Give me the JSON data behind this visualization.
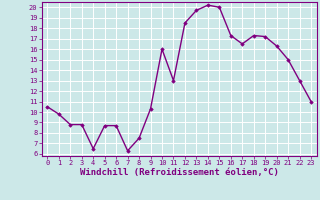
{
  "x": [
    0,
    1,
    2,
    3,
    4,
    5,
    6,
    7,
    8,
    9,
    10,
    11,
    12,
    13,
    14,
    15,
    16,
    17,
    18,
    19,
    20,
    21,
    22,
    23
  ],
  "y": [
    10.5,
    9.8,
    8.8,
    8.8,
    6.5,
    8.7,
    8.7,
    6.3,
    7.5,
    10.3,
    16.0,
    13.0,
    18.5,
    19.7,
    20.2,
    20.0,
    17.3,
    16.5,
    17.3,
    17.2,
    16.3,
    15.0,
    13.0,
    11.0
  ],
  "line_color": "#800080",
  "marker": "D",
  "marker_size": 1.8,
  "line_width": 1.0,
  "xlabel": "Windchill (Refroidissement éolien,°C)",
  "xlim": [
    -0.5,
    23.5
  ],
  "ylim": [
    5.8,
    20.5
  ],
  "yticks": [
    6,
    7,
    8,
    9,
    10,
    11,
    12,
    13,
    14,
    15,
    16,
    17,
    18,
    19,
    20
  ],
  "xticks": [
    0,
    1,
    2,
    3,
    4,
    5,
    6,
    7,
    8,
    9,
    10,
    11,
    12,
    13,
    14,
    15,
    16,
    17,
    18,
    19,
    20,
    21,
    22,
    23
  ],
  "bg_color": "#cce8e8",
  "grid_color": "#ffffff",
  "tick_color": "#800080",
  "label_fontsize": 6.0,
  "tick_fontsize": 5.0,
  "xlabel_fontsize": 6.5
}
